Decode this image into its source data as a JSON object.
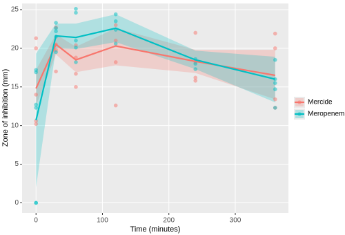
{
  "chart_data": {
    "type": "line",
    "x_label": "Time (minutes)",
    "y_label": "Zone of inhibition (mm)",
    "xlim": [
      -21,
      380
    ],
    "ylim": [
      -1.3,
      25.8
    ],
    "xticks": [
      0,
      100,
      200,
      300
    ],
    "yticks": [
      0,
      5,
      10,
      15,
      20,
      25
    ],
    "grid": true,
    "legend": "right",
    "series": [
      {
        "name": "Mercide",
        "color": "#F8766D",
        "x": [
          0,
          30,
          60,
          120,
          240,
          360
        ],
        "values": [
          14.8,
          20.5,
          18.5,
          20.3,
          18.3,
          16.5
        ],
        "lower": [
          12.6,
          19.2,
          16.9,
          17.8,
          16.8,
          13.4
        ],
        "upper": [
          17.2,
          21.8,
          20.2,
          22.6,
          19.8,
          19.8
        ],
        "point_x": [
          0,
          0,
          0,
          0,
          0,
          30,
          30,
          30,
          30,
          60,
          60,
          60,
          60,
          120,
          120,
          120,
          120,
          240,
          240,
          240,
          240,
          360,
          360,
          360,
          360
        ],
        "point_y": [
          21.3,
          20.0,
          14.0,
          10.6,
          10.2,
          20.5,
          19.8,
          17.0,
          22.7,
          20.4,
          16.7,
          15.0,
          18.8,
          23.0,
          21.0,
          18.2,
          12.6,
          22.0,
          18.2,
          16.2,
          15.8,
          21.9,
          20.0,
          13.4,
          12.3
        ]
      },
      {
        "name": "Meropenem",
        "color": "#00BFC4",
        "x": [
          0,
          30,
          60,
          120,
          240,
          360
        ],
        "values": [
          10.7,
          21.6,
          21.4,
          22.6,
          18.5,
          16.0
        ],
        "lower": [
          2.0,
          20.0,
          19.9,
          20.8,
          17.3,
          13.0
        ],
        "upper": [
          19.3,
          23.2,
          23.2,
          24.4,
          19.7,
          18.9
        ],
        "point_x": [
          0,
          0,
          0,
          0,
          0,
          0,
          30,
          30,
          30,
          30,
          30,
          60,
          60,
          60,
          60,
          60,
          120,
          120,
          120,
          120,
          240,
          240,
          240,
          360,
          360,
          360,
          360,
          360
        ],
        "point_y": [
          17.2,
          16.9,
          12.7,
          12.3,
          0,
          0,
          23.3,
          22.6,
          22.2,
          21.5,
          19.5,
          25.1,
          24.6,
          21.0,
          20.1,
          18.2,
          24.4,
          23.5,
          22.4,
          20.6,
          18.6,
          18.0,
          17.3,
          18.5,
          16.0,
          15.5,
          14.7,
          12.3
        ]
      }
    ]
  }
}
